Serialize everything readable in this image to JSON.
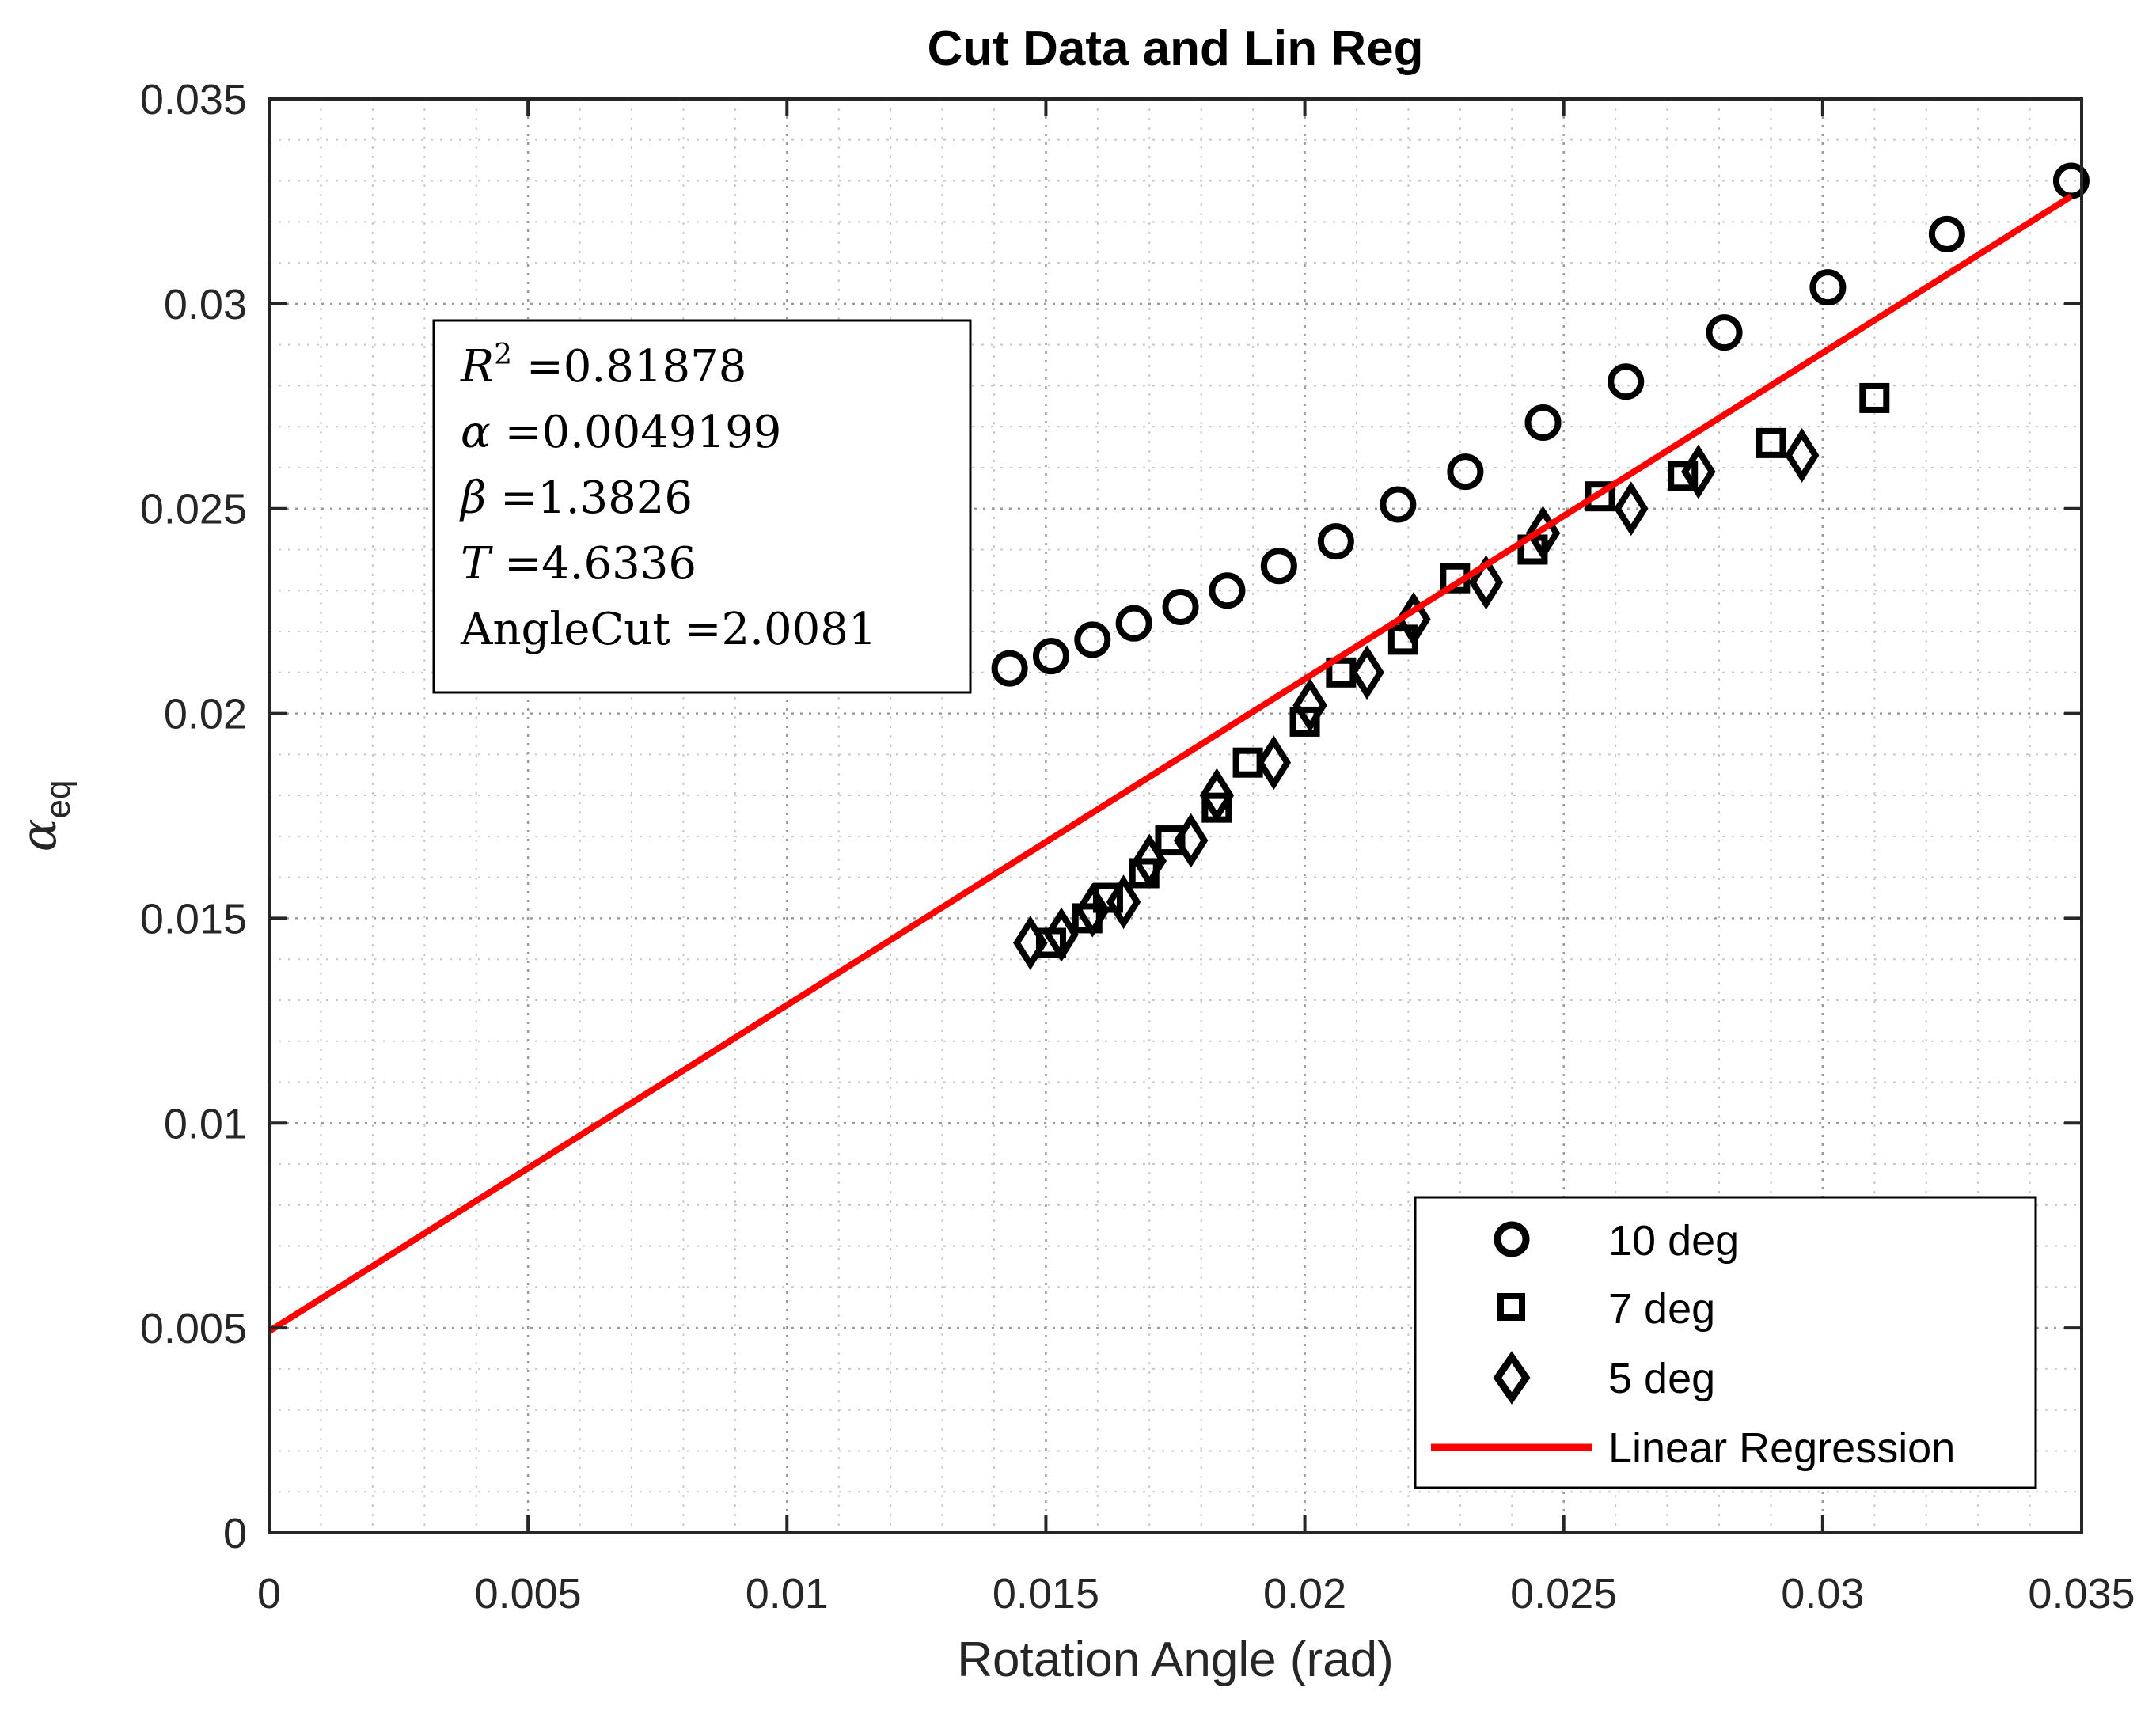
{
  "chart_data": {
    "type": "scatter",
    "title": "Cut Data and Lin Reg",
    "xlabel": "Rotation Angle (rad)",
    "ylabel": "α",
    "ylabel_subscript": "eq",
    "xlim": [
      0,
      0.035
    ],
    "ylim": [
      0,
      0.035
    ],
    "xticks": [
      0,
      0.005,
      0.01,
      0.015,
      0.02,
      0.025,
      0.03,
      0.035
    ],
    "xtick_labels": [
      "0",
      "0.005",
      "0.01",
      "0.015",
      "0.02",
      "0.025",
      "0.03",
      "0.035"
    ],
    "yticks": [
      0,
      0.005,
      0.01,
      0.015,
      0.02,
      0.025,
      0.03,
      0.035
    ],
    "ytick_labels": [
      "0",
      "0.005",
      "0.01",
      "0.015",
      "0.02",
      "0.025",
      "0.03",
      "0.035"
    ],
    "grid": true,
    "minor_grid": true,
    "legend_position": "bottom-right",
    "series": [
      {
        "name": "10 deg",
        "marker": "circle",
        "color": "#000000",
        "x": [
          0.0143,
          0.0151,
          0.0159,
          0.0167,
          0.0176,
          0.0185,
          0.0195,
          0.0206,
          0.0218,
          0.0231,
          0.0246,
          0.0262,
          0.0281,
          0.0301,
          0.0324,
          0.0348
        ],
        "y": [
          0.0211,
          0.0214,
          0.0218,
          0.0222,
          0.0226,
          0.023,
          0.0236,
          0.0242,
          0.0251,
          0.0259,
          0.0271,
          0.0281,
          0.0293,
          0.0304,
          0.0317,
          0.033
        ]
      },
      {
        "name": "7 deg",
        "marker": "square",
        "color": "#000000",
        "x": [
          0.0151,
          0.0158,
          0.0162,
          0.0169,
          0.0174,
          0.0183,
          0.0189,
          0.02,
          0.0207,
          0.0219,
          0.0229,
          0.0244,
          0.0257,
          0.0273,
          0.029,
          0.031
        ],
        "y": [
          0.0144,
          0.015,
          0.0155,
          0.0161,
          0.0169,
          0.0177,
          0.0188,
          0.0198,
          0.021,
          0.0218,
          0.0233,
          0.024,
          0.0253,
          0.0258,
          0.0266,
          0.0277
        ]
      },
      {
        "name": "5 deg",
        "marker": "diamond",
        "color": "#000000",
        "x": [
          0.0147,
          0.0153,
          0.0159,
          0.0165,
          0.017,
          0.0178,
          0.0183,
          0.0194,
          0.0201,
          0.0212,
          0.0221,
          0.0235,
          0.0246,
          0.0263,
          0.0276,
          0.0296
        ],
        "y": [
          0.0144,
          0.0146,
          0.0152,
          0.0154,
          0.0164,
          0.0169,
          0.018,
          0.0188,
          0.0202,
          0.021,
          0.0223,
          0.0232,
          0.0244,
          0.025,
          0.0259,
          0.0263
        ]
      },
      {
        "name": "Linear Regression",
        "type": "line",
        "color": "#ff0000",
        "x": [
          0,
          0.0348
        ],
        "y": [
          0.0049199,
          0.032623
        ]
      }
    ],
    "annotation": {
      "lines": [
        {
          "var": "R",
          "sup": "2",
          "eq": " =0.81878"
        },
        {
          "var": "α",
          "eq": " =0.0049199"
        },
        {
          "var": "β",
          "eq": " =1.3826"
        },
        {
          "var": "T",
          "eq": " =4.6336"
        },
        {
          "text": "AngleCut",
          "eq": " =2.0081"
        }
      ]
    }
  }
}
